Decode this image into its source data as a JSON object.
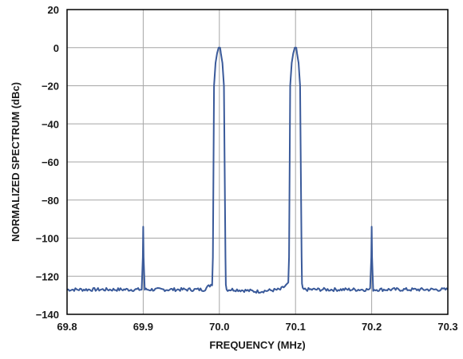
{
  "chart_data": {
    "type": "line",
    "title": "",
    "xlabel": "FREQUENCY (MHz)",
    "ylabel": "NORMALIZED SPECTRUM (dBc)",
    "xlim": [
      69.8,
      70.3
    ],
    "ylim": [
      -140,
      20
    ],
    "x_ticks": [
      "69.8",
      "69.9",
      "70.0",
      "70.1",
      "70.2",
      "70.3"
    ],
    "y_ticks": [
      "20",
      "0",
      "−20",
      "−40",
      "−60",
      "−80",
      "−100",
      "−120",
      "−140"
    ],
    "grid": true,
    "line_color": "#3a5a9a",
    "series": [
      {
        "x": [
          69.8,
          69.85,
          69.898,
          69.8995,
          69.9,
          69.9005,
          69.902,
          69.95,
          69.98,
          69.9905,
          69.9915,
          69.993,
          69.995,
          69.997,
          69.999,
          70.0,
          70.001,
          70.002,
          70.004,
          70.006,
          70.008,
          70.0085,
          70.0095,
          70.02,
          70.05,
          70.08,
          70.0905,
          70.0915,
          70.093,
          70.095,
          70.097,
          70.099,
          70.1,
          70.101,
          70.102,
          70.104,
          70.106,
          70.108,
          70.1085,
          70.1095,
          70.12,
          70.15,
          70.198,
          70.1995,
          70.2,
          70.2005,
          70.202,
          70.25,
          70.3
        ],
        "y": [
          -127,
          -127,
          -127,
          -110,
          -94,
          -110,
          -127,
          -127,
          -127,
          -124,
          -110,
          -20,
          -8,
          -3,
          0,
          0,
          0,
          -3,
          -8,
          -20,
          -110,
          -124,
          -127,
          -127,
          -128,
          -127,
          -124,
          -110,
          -20,
          -8,
          -3,
          0,
          0,
          0,
          -3,
          -8,
          -20,
          -110,
          -124,
          -127,
          -127,
          -127,
          -127,
          -110,
          -94,
          -110,
          -127,
          -127,
          -127
        ]
      }
    ]
  }
}
